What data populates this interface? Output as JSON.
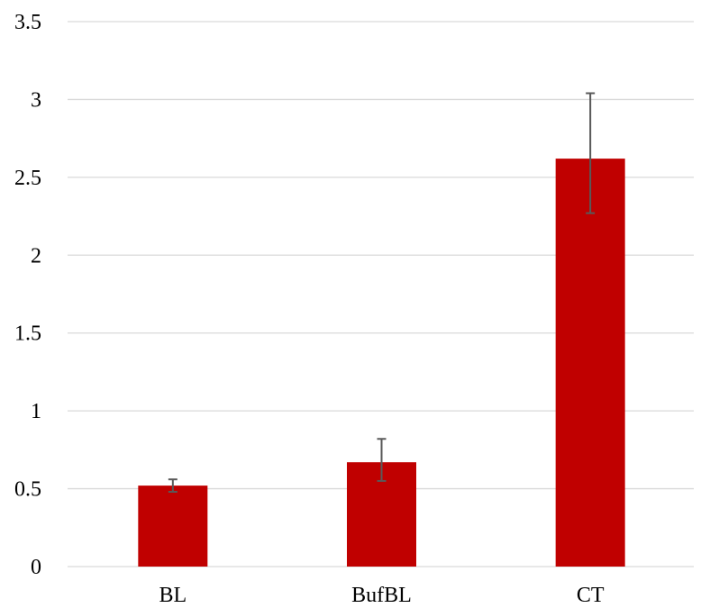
{
  "chart_data": {
    "type": "bar",
    "title": "",
    "xlabel": "",
    "ylabel": "",
    "categories": [
      "BL",
      "BufBL",
      "CT"
    ],
    "series": [
      {
        "values": [
          0.52,
          0.67,
          2.62
        ],
        "error_low": [
          0.48,
          0.55,
          2.27
        ],
        "error_high": [
          0.56,
          0.82,
          3.04
        ],
        "color": "#c00000"
      }
    ],
    "ylim": [
      0,
      3.5
    ],
    "yticks": [
      0,
      0.5,
      1,
      1.5,
      2,
      2.5,
      3,
      3.5
    ],
    "ytick_labels": [
      "0",
      "0.5",
      "1",
      "1.5",
      "2",
      "2.5",
      "3",
      "3.5"
    ],
    "grid": true,
    "legend": "none"
  },
  "colors": {
    "bar": "#c00000",
    "error_bar": "#595959",
    "gridline": "#d9d9d9"
  }
}
